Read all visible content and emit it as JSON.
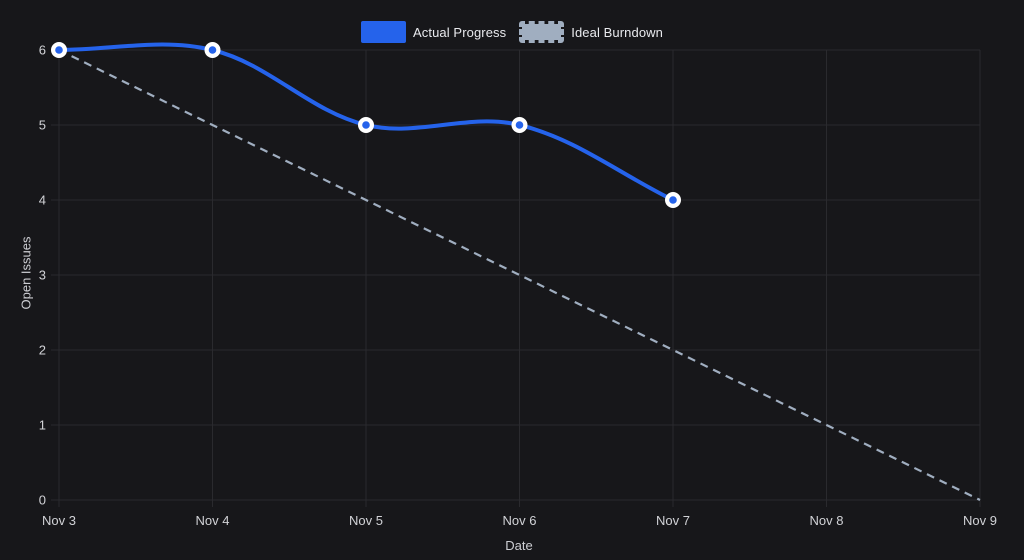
{
  "colors": {
    "background": "#17171a",
    "grid": "#2a2a2e",
    "tick_label": "#d2d3d7",
    "axis_title": "#cdced3",
    "legend_text": "#e9eaee",
    "actual_blue": "#2563eb",
    "ideal_gray": "#a0aec0",
    "point_border": "#ffffff"
  },
  "legend": {
    "items": [
      {
        "id": "actual-progress",
        "label": "Actual Progress",
        "swatch": "solid"
      },
      {
        "id": "ideal-burndown",
        "label": "Ideal Burndown",
        "swatch": "dashed"
      }
    ]
  },
  "chart_data": {
    "type": "line",
    "x": [
      "Nov 3",
      "Nov 4",
      "Nov 5",
      "Nov 6",
      "Nov 7",
      "Nov 8",
      "Nov 9"
    ],
    "xlabel": "Date",
    "ylabel": "Open Issues",
    "ylim": [
      0,
      6
    ],
    "yticks": [
      0,
      1,
      2,
      3,
      4,
      5,
      6
    ],
    "grid": true,
    "legend_position": "top",
    "series": [
      {
        "id": "actual-progress",
        "name": "Actual Progress",
        "values": [
          6,
          6,
          5,
          5,
          4,
          null,
          null
        ],
        "color": "#2563eb",
        "dash": false,
        "points": true
      },
      {
        "id": "ideal-burndown",
        "name": "Ideal Burndown",
        "values": [
          6,
          5,
          4,
          3,
          2,
          1,
          0
        ],
        "color": "#a0aec0",
        "dash": true,
        "points": false
      }
    ]
  }
}
